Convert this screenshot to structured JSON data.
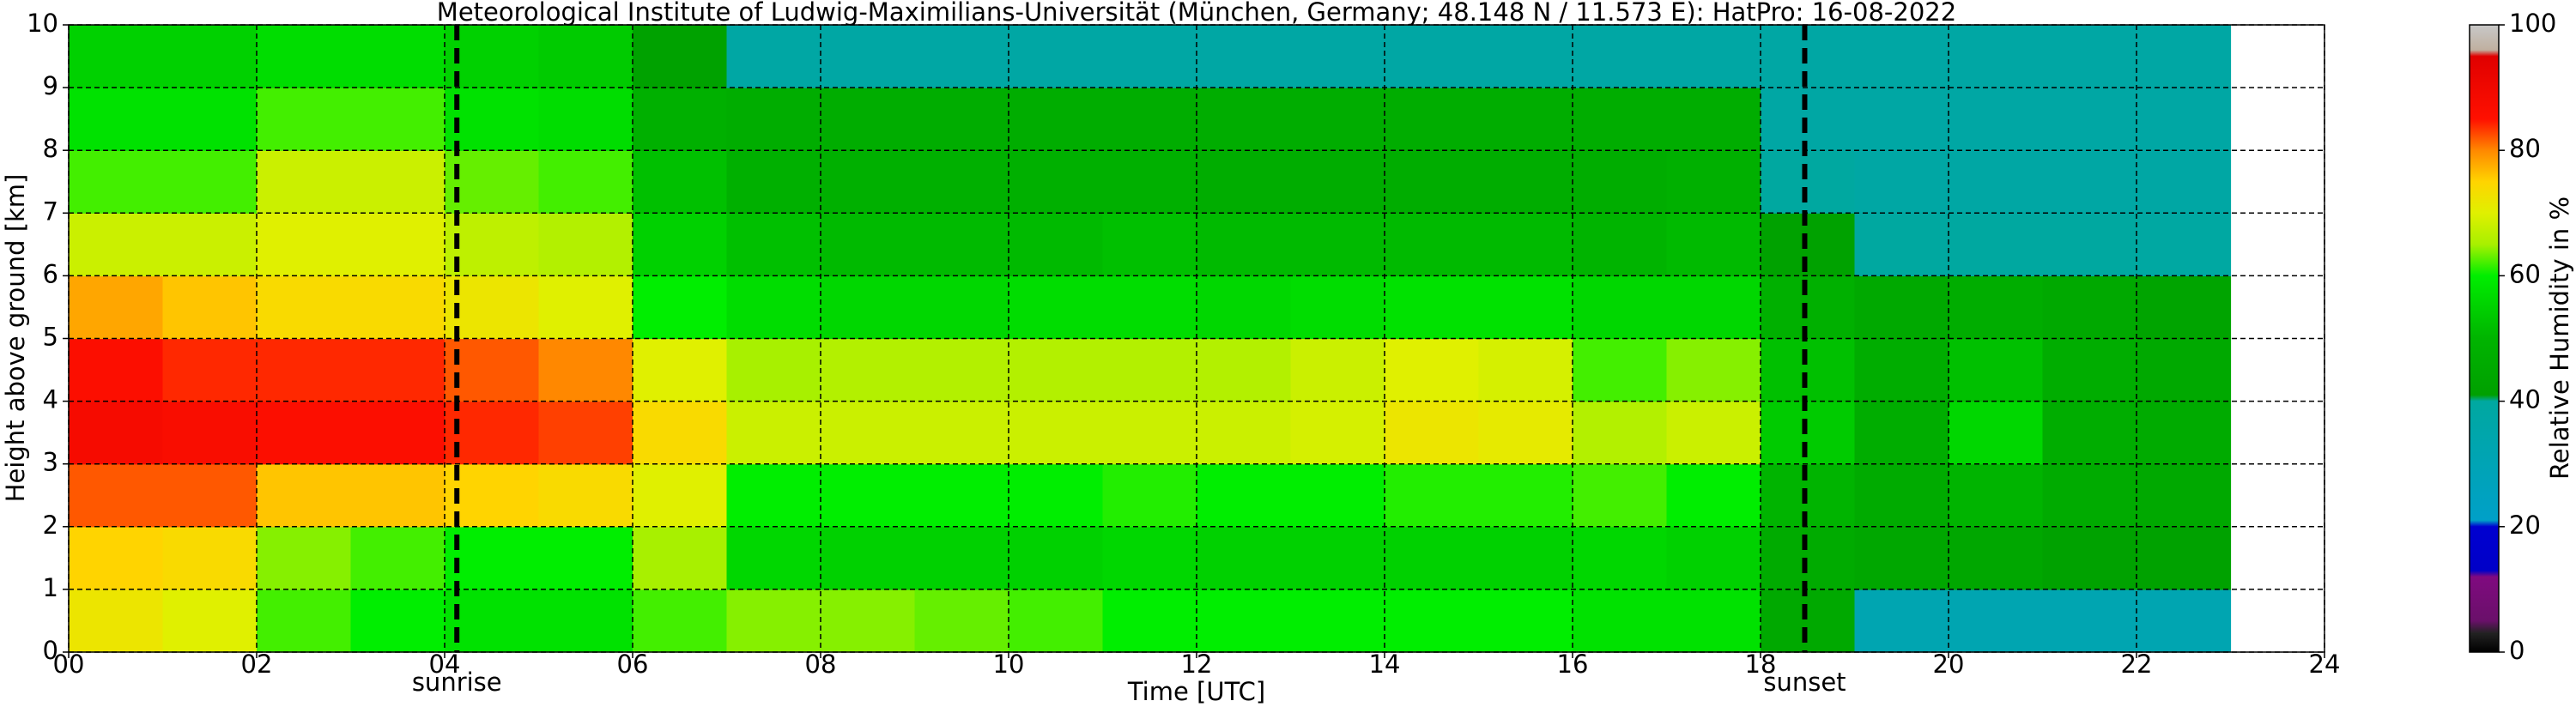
{
  "chart_data": {
    "type": "heatmap",
    "title": "Meteorological Institute of Ludwig-Maximilians-Universität (München, Germany; 48.148 N / 11.573 E):    HatPro: 16-08-2022",
    "xlabel": "Time [UTC]",
    "ylabel": "Height above ground [km]",
    "colorbar_label": "Relative Humidity in %",
    "xlim": [
      0,
      24
    ],
    "ylim": [
      0,
      10
    ],
    "xticks": [
      {
        "value": 0,
        "label": "00"
      },
      {
        "value": 2,
        "label": "02"
      },
      {
        "value": 4,
        "label": "04"
      },
      {
        "value": 6,
        "label": "06"
      },
      {
        "value": 8,
        "label": "08"
      },
      10,
      12,
      14,
      16,
      18,
      20,
      22,
      24
    ],
    "yticks": [
      0,
      1,
      2,
      3,
      4,
      5,
      6,
      7,
      8,
      9,
      10
    ],
    "clim": [
      0,
      100
    ],
    "cticks": [
      0,
      20,
      40,
      60,
      80,
      100
    ],
    "grid": true,
    "colorscale": [
      [
        0,
        "#000000"
      ],
      [
        3,
        "#222222"
      ],
      [
        5,
        "#6a106a"
      ],
      [
        12,
        "#800a80"
      ],
      [
        13,
        "#0000c8"
      ],
      [
        20,
        "#0000d0"
      ],
      [
        21,
        "#00a0c8"
      ],
      [
        40,
        "#00a8a0"
      ],
      [
        41,
        "#00a000"
      ],
      [
        50,
        "#00b400"
      ],
      [
        60,
        "#00ee00"
      ],
      [
        65,
        "#a8f000"
      ],
      [
        70,
        "#e0f000"
      ],
      [
        75,
        "#ffd400"
      ],
      [
        80,
        "#ff8800"
      ],
      [
        85,
        "#ff1000"
      ],
      [
        95,
        "#e00000"
      ],
      [
        96,
        "#c0b0a0"
      ],
      [
        100,
        "#c8c8c8"
      ]
    ],
    "xbins": [
      0,
      1,
      2,
      3,
      4,
      5,
      6,
      7,
      8,
      9,
      10,
      11,
      12,
      13,
      14,
      15,
      16,
      17,
      18,
      19,
      20,
      21,
      22,
      23
    ],
    "ybins": [
      0,
      1,
      2,
      3,
      4,
      5,
      6,
      7,
      8,
      9,
      10
    ],
    "z": [
      [
        72,
        75,
        82,
        88,
        86,
        78,
        68,
        62,
        58,
        55
      ],
      [
        70,
        74,
        82,
        87,
        84,
        76,
        68,
        62,
        58,
        55
      ],
      [
        62,
        64,
        76,
        86,
        84,
        74,
        70,
        68,
        62,
        57
      ],
      [
        60,
        62,
        76,
        86,
        84,
        74,
        70,
        68,
        62,
        57
      ],
      [
        58,
        60,
        75,
        84,
        82,
        72,
        67,
        63,
        58,
        55
      ],
      [
        58,
        60,
        74,
        83,
        80,
        70,
        66,
        62,
        57,
        54
      ],
      [
        62,
        65,
        70,
        74,
        70,
        60,
        55,
        52,
        48,
        42
      ],
      [
        64,
        56,
        60,
        68,
        65,
        57,
        52,
        48,
        47,
        38
      ],
      [
        64,
        55,
        60,
        68,
        66,
        56,
        51,
        48,
        47,
        38
      ],
      [
        63,
        55,
        60,
        68,
        66,
        56,
        51,
        48,
        47,
        38
      ],
      [
        62,
        55,
        60,
        68,
        66,
        57,
        51,
        48,
        47,
        38
      ],
      [
        60,
        56,
        61,
        68,
        66,
        57,
        52,
        48,
        47,
        38
      ],
      [
        60,
        55,
        60,
        68,
        66,
        56,
        51,
        47,
        47,
        38
      ],
      [
        60,
        55,
        60,
        69,
        68,
        57,
        51,
        47,
        47,
        38
      ],
      [
        60,
        55,
        61,
        72,
        70,
        58,
        51,
        47,
        47,
        38
      ],
      [
        60,
        55,
        61,
        71,
        69,
        58,
        51,
        47,
        47,
        38
      ],
      [
        58,
        56,
        62,
        66,
        62,
        56,
        50,
        47,
        47,
        38
      ],
      [
        58,
        55,
        60,
        68,
        64,
        56,
        51,
        48,
        47,
        38
      ],
      [
        45,
        46,
        50,
        54,
        52,
        48,
        42,
        40,
        38,
        38
      ],
      [
        32,
        44,
        46,
        47,
        47,
        45,
        40,
        38,
        38,
        38
      ],
      [
        32,
        44,
        50,
        56,
        52,
        47,
        40,
        38,
        38,
        38
      ],
      [
        32,
        42,
        46,
        47,
        47,
        45,
        40,
        38,
        38,
        38
      ],
      [
        32,
        42,
        45,
        46,
        45,
        43,
        39,
        38,
        38,
        38
      ]
    ],
    "annotations": [
      {
        "label": "sunrise",
        "x": 4.13
      },
      {
        "label": "sunset",
        "x": 18.47
      }
    ]
  }
}
